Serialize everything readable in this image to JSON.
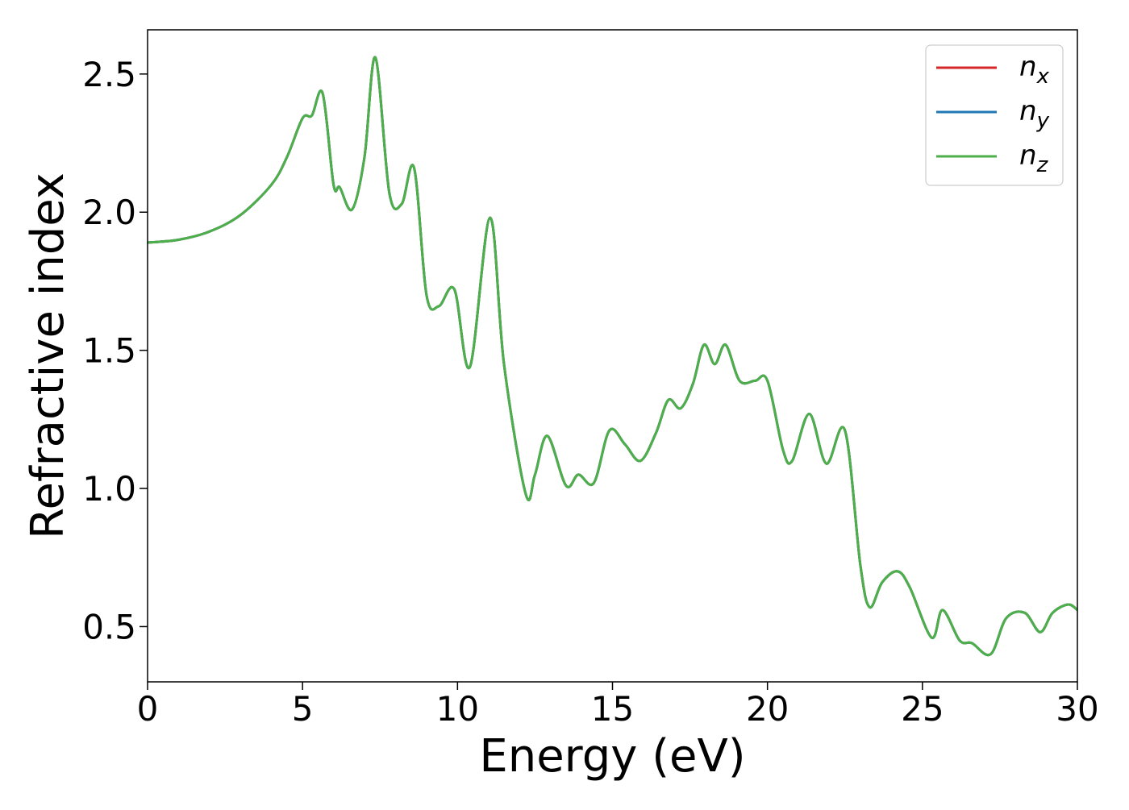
{
  "chart_data": {
    "type": "line",
    "title": "",
    "xlabel": "Energy (eV)",
    "ylabel": "Refractive index",
    "xlim": [
      0,
      30
    ],
    "ylim": [
      0.3,
      2.66
    ],
    "xticks": [
      0,
      5,
      10,
      15,
      20,
      25,
      30
    ],
    "yticks": [
      0.5,
      1.0,
      1.5,
      2.0,
      2.5
    ],
    "grid": false,
    "legend": {
      "position": "top-right",
      "entries": [
        {
          "base": "n",
          "sub": "x",
          "color": "#d62728"
        },
        {
          "base": "n",
          "sub": "y",
          "color": "#1f77b4"
        },
        {
          "base": "n",
          "sub": "z",
          "color": "#4daf4a"
        }
      ]
    },
    "x": [
      0,
      1,
      2,
      3,
      4,
      4.5,
      5,
      5.3,
      5.65,
      6.0,
      6.2,
      6.6,
      7.0,
      7.35,
      7.8,
      8.2,
      8.6,
      9.0,
      9.4,
      9.9,
      10.4,
      11.05,
      11.5,
      12.2,
      12.5,
      12.9,
      13.5,
      13.9,
      14.4,
      14.9,
      15.4,
      15.9,
      16.4,
      16.8,
      17.2,
      17.6,
      17.95,
      18.3,
      18.65,
      19.1,
      19.6,
      20.0,
      20.5,
      20.8,
      21.35,
      21.9,
      22.5,
      23.0,
      23.3,
      23.7,
      24.2,
      24.6,
      25.3,
      25.65,
      26.2,
      26.6,
      27.2,
      27.7,
      28.3,
      28.8,
      29.2,
      29.7,
      30.0
    ],
    "series": [
      {
        "name": "nx",
        "color": "#d62728",
        "values": [
          1.89,
          1.9,
          1.93,
          1.99,
          2.1,
          2.2,
          2.34,
          2.35,
          2.43,
          2.1,
          2.09,
          2.01,
          2.2,
          2.56,
          2.07,
          2.03,
          2.16,
          1.7,
          1.66,
          1.72,
          1.44,
          1.98,
          1.45,
          0.98,
          1.05,
          1.19,
          1.01,
          1.05,
          1.02,
          1.21,
          1.16,
          1.1,
          1.2,
          1.32,
          1.29,
          1.38,
          1.52,
          1.45,
          1.52,
          1.39,
          1.39,
          1.39,
          1.14,
          1.1,
          1.27,
          1.09,
          1.21,
          0.72,
          0.57,
          0.66,
          0.7,
          0.64,
          0.46,
          0.56,
          0.45,
          0.44,
          0.4,
          0.53,
          0.55,
          0.48,
          0.55,
          0.58,
          0.56
        ]
      },
      {
        "name": "ny",
        "color": "#1f77b4",
        "values": [
          1.89,
          1.9,
          1.93,
          1.99,
          2.1,
          2.2,
          2.34,
          2.35,
          2.43,
          2.1,
          2.09,
          2.01,
          2.2,
          2.56,
          2.07,
          2.03,
          2.16,
          1.7,
          1.66,
          1.72,
          1.44,
          1.98,
          1.45,
          0.98,
          1.05,
          1.19,
          1.01,
          1.05,
          1.02,
          1.21,
          1.16,
          1.1,
          1.2,
          1.32,
          1.29,
          1.38,
          1.52,
          1.45,
          1.52,
          1.39,
          1.39,
          1.39,
          1.14,
          1.1,
          1.27,
          1.09,
          1.21,
          0.72,
          0.57,
          0.66,
          0.7,
          0.64,
          0.46,
          0.56,
          0.45,
          0.44,
          0.4,
          0.53,
          0.55,
          0.48,
          0.55,
          0.58,
          0.56
        ]
      },
      {
        "name": "nz",
        "color": "#4daf4a",
        "values": [
          1.89,
          1.9,
          1.93,
          1.99,
          2.1,
          2.2,
          2.34,
          2.35,
          2.43,
          2.1,
          2.09,
          2.01,
          2.2,
          2.56,
          2.07,
          2.03,
          2.16,
          1.7,
          1.66,
          1.72,
          1.44,
          1.98,
          1.45,
          0.98,
          1.05,
          1.19,
          1.01,
          1.05,
          1.02,
          1.21,
          1.16,
          1.1,
          1.2,
          1.32,
          1.29,
          1.38,
          1.52,
          1.45,
          1.52,
          1.39,
          1.39,
          1.39,
          1.14,
          1.1,
          1.27,
          1.09,
          1.21,
          0.72,
          0.57,
          0.66,
          0.7,
          0.64,
          0.46,
          0.56,
          0.45,
          0.44,
          0.4,
          0.53,
          0.55,
          0.48,
          0.55,
          0.58,
          0.56
        ]
      }
    ]
  }
}
